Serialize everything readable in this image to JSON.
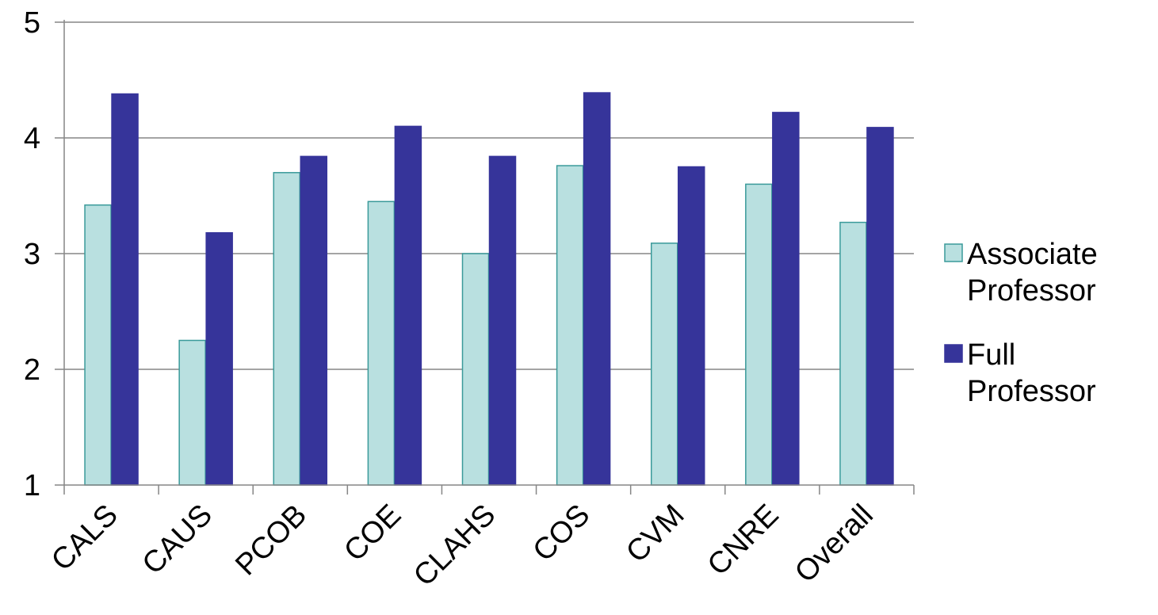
{
  "chart_data": {
    "type": "bar",
    "categories": [
      "CALS",
      "CAUS",
      "PCOB",
      "COE",
      "CLAHS",
      "COS",
      "CVM",
      "CNRE",
      "Overall"
    ],
    "series": [
      {
        "name": "Associate Professor",
        "name_lines": [
          "Associate",
          "Professor"
        ],
        "color": "#b9e0e0",
        "stroke": "#3a9a9a",
        "values": [
          3.42,
          2.25,
          3.7,
          3.45,
          3.0,
          3.76,
          3.09,
          3.6,
          3.27
        ]
      },
      {
        "name": "Full Professor",
        "name_lines": [
          "Full",
          "Professor"
        ],
        "color": "#36349a",
        "stroke": "#36349a",
        "values": [
          4.38,
          3.18,
          3.84,
          4.1,
          3.84,
          4.39,
          3.75,
          4.22,
          4.09
        ]
      }
    ],
    "ylim": [
      1,
      5
    ],
    "yticks": [
      "1",
      "2",
      "3",
      "4",
      "5"
    ],
    "grid": true,
    "legend": "right",
    "gridline_color": "#868686"
  }
}
